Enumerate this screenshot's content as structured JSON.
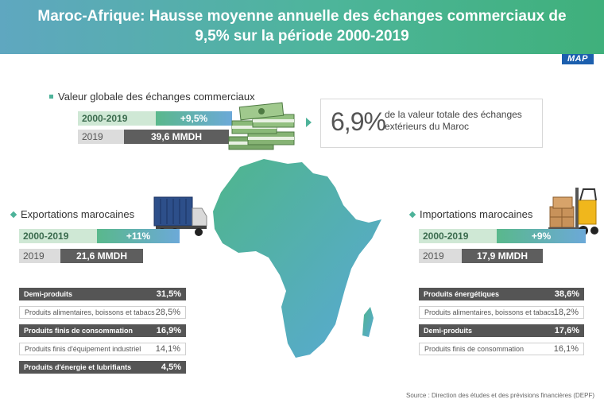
{
  "banner": {
    "title": "Maroc-Afrique: Hausse moyenne annuelle des échanges commerciaux de 9,5% sur la période 2000-2019",
    "logo": "MAP"
  },
  "global": {
    "title": "Valeur globale des échanges commerciaux",
    "period": "2000-2019",
    "growth": "+9,5%",
    "year": "2019",
    "value": "39,6 MMDH",
    "share": "6,9%",
    "share_desc": "de la valeur totale des échanges extérieurs du Maroc"
  },
  "exports": {
    "title": "Exportations marocaines",
    "period": "2000-2019",
    "growth": "+11%",
    "year": "2019",
    "value": "21,6 MMDH",
    "products": [
      {
        "label": "Demi-produits",
        "value": "31,5%"
      },
      {
        "label": "Produits alimentaires, boissons et tabacs",
        "value": "28,5%"
      },
      {
        "label": "Produits finis de consommation",
        "value": "16,9%"
      },
      {
        "label": "Produits finis d'équipement industriel",
        "value": "14,1%"
      },
      {
        "label": "Produits d'énergie et lubrifiants",
        "value": "4,5%"
      }
    ]
  },
  "imports": {
    "title": "Importations marocaines",
    "period": "2000-2019",
    "growth": "+9%",
    "year": "2019",
    "value": "17,9 MMDH",
    "products": [
      {
        "label": "Produits énergétiques",
        "value": "38,6%"
      },
      {
        "label": "Produits alimentaires, boissons et tabacs",
        "value": "18,2%"
      },
      {
        "label": "Demi-produits",
        "value": "17,6%"
      },
      {
        "label": "Produits finis de consommation",
        "value": "16,1%"
      }
    ]
  },
  "source": "Source : Direction des études et des prévisions financières (DEPF)",
  "icons": [
    "money-stack-icon",
    "container-truck-icon",
    "forklift-icon",
    "africa-map-icon"
  ],
  "colors": {
    "accent": "#4eb39a",
    "dark_row": "#555555",
    "banner_blue": "#5fa7c0",
    "banner_green": "#3fb07b"
  }
}
